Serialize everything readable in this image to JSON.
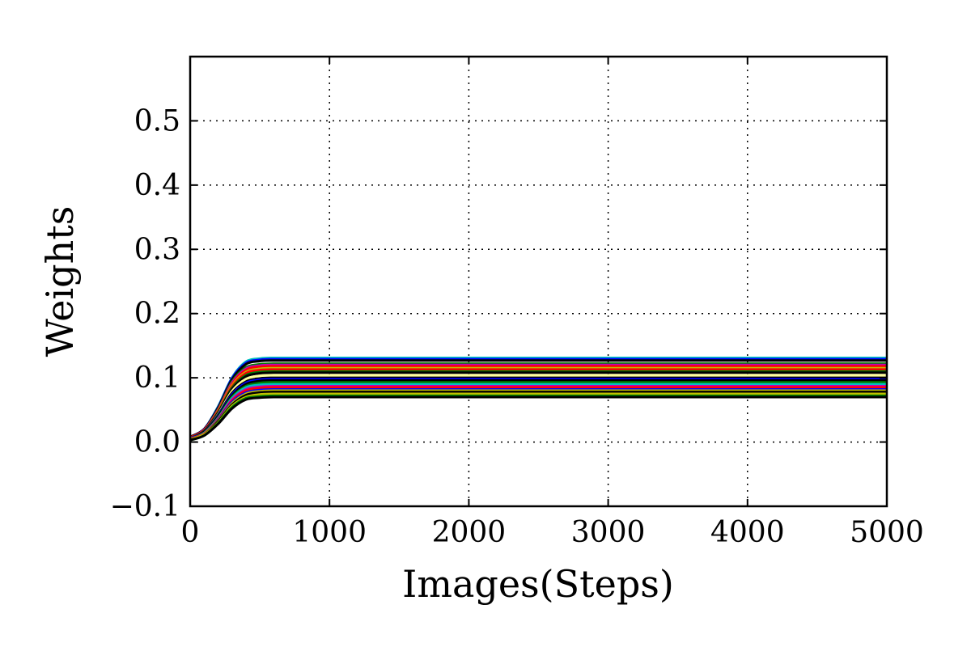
{
  "chart_data": {
    "type": "line",
    "title": "",
    "xlabel": "Images(Steps)",
    "ylabel": "Weights",
    "xlim": [
      0,
      5000
    ],
    "ylim": [
      -0.1,
      0.6
    ],
    "xticks": [
      0,
      1000,
      2000,
      3000,
      4000,
      5000
    ],
    "xtick_labels": [
      "0",
      "1000",
      "2000",
      "3000",
      "4000",
      "5000"
    ],
    "yticks": [
      -0.1,
      0.0,
      0.1,
      0.2,
      0.3,
      0.4,
      0.5
    ],
    "ytick_labels": [
      "−0.1",
      "0.0",
      "0.1",
      "0.2",
      "0.3",
      "0.4",
      "0.5"
    ],
    "grid": true,
    "legend": "none",
    "series_shape": "sigmoid rise from ~0.005 at x=0, plateau reached near x=500",
    "x": [
      0,
      100,
      200,
      300,
      400,
      500,
      600,
      1000,
      2000,
      3000,
      4000,
      5000
    ],
    "series": [
      {
        "color": "#00bfbf",
        "values": [
          0.008,
          0.02,
          0.055,
          0.1,
          0.125,
          0.13,
          0.131,
          0.131,
          0.131,
          0.131,
          0.131,
          0.131
        ]
      },
      {
        "color": "#0000ff",
        "values": [
          0.008,
          0.02,
          0.054,
          0.099,
          0.123,
          0.128,
          0.129,
          0.129,
          0.129,
          0.129,
          0.129,
          0.129
        ]
      },
      {
        "color": "#000000",
        "values": [
          0.008,
          0.02,
          0.053,
          0.097,
          0.121,
          0.126,
          0.127,
          0.127,
          0.127,
          0.127,
          0.127,
          0.127
        ]
      },
      {
        "color": "#007f00",
        "values": [
          0.007,
          0.019,
          0.051,
          0.094,
          0.116,
          0.121,
          0.122,
          0.122,
          0.122,
          0.122,
          0.122,
          0.122
        ]
      },
      {
        "color": "#bf00bf",
        "values": [
          0.007,
          0.019,
          0.05,
          0.092,
          0.114,
          0.119,
          0.12,
          0.12,
          0.12,
          0.12,
          0.12,
          0.12
        ]
      },
      {
        "color": "#ff0000",
        "values": [
          0.007,
          0.018,
          0.049,
          0.09,
          0.112,
          0.117,
          0.118,
          0.118,
          0.118,
          0.118,
          0.118,
          0.118
        ]
      },
      {
        "color": "#bfbf00",
        "values": [
          0.007,
          0.018,
          0.048,
          0.088,
          0.109,
          0.114,
          0.115,
          0.115,
          0.115,
          0.115,
          0.115,
          0.115
        ]
      },
      {
        "color": "#ff0000",
        "values": [
          0.007,
          0.018,
          0.047,
          0.086,
          0.107,
          0.112,
          0.113,
          0.113,
          0.113,
          0.113,
          0.113,
          0.113
        ]
      },
      {
        "color": "#007f00",
        "values": [
          0.006,
          0.017,
          0.046,
          0.084,
          0.104,
          0.109,
          0.11,
          0.11,
          0.11,
          0.11,
          0.11,
          0.11
        ]
      },
      {
        "color": "#000000",
        "values": [
          0.006,
          0.017,
          0.045,
          0.082,
          0.102,
          0.107,
          0.108,
          0.108,
          0.108,
          0.108,
          0.108,
          0.108
        ]
      },
      {
        "color": "#ffff99",
        "values": [
          0.006,
          0.016,
          0.043,
          0.079,
          0.098,
          0.103,
          0.104,
          0.104,
          0.104,
          0.104,
          0.104,
          0.104
        ]
      },
      {
        "color": "#000000",
        "values": [
          0.006,
          0.016,
          0.042,
          0.076,
          0.094,
          0.099,
          0.1,
          0.1,
          0.1,
          0.1,
          0.1,
          0.1
        ]
      },
      {
        "color": "#0000ff",
        "values": [
          0.006,
          0.015,
          0.041,
          0.074,
          0.092,
          0.097,
          0.098,
          0.098,
          0.098,
          0.098,
          0.098,
          0.098
        ]
      },
      {
        "color": "#000000",
        "values": [
          0.005,
          0.015,
          0.04,
          0.072,
          0.09,
          0.095,
          0.096,
          0.096,
          0.096,
          0.096,
          0.096,
          0.096
        ]
      },
      {
        "color": "#007f00",
        "values": [
          0.005,
          0.014,
          0.038,
          0.07,
          0.087,
          0.092,
          0.093,
          0.093,
          0.093,
          0.093,
          0.093,
          0.093
        ]
      },
      {
        "color": "#00bfbf",
        "values": [
          0.005,
          0.014,
          0.037,
          0.068,
          0.085,
          0.089,
          0.09,
          0.09,
          0.09,
          0.09,
          0.09,
          0.09
        ]
      },
      {
        "color": "#bf00bf",
        "values": [
          0.005,
          0.013,
          0.036,
          0.066,
          0.082,
          0.086,
          0.087,
          0.087,
          0.087,
          0.087,
          0.087,
          0.087
        ]
      },
      {
        "color": "#ff0000",
        "values": [
          0.005,
          0.013,
          0.035,
          0.064,
          0.08,
          0.084,
          0.085,
          0.085,
          0.085,
          0.085,
          0.085,
          0.085
        ]
      },
      {
        "color": "#0000ff",
        "values": [
          0.004,
          0.012,
          0.034,
          0.062,
          0.077,
          0.081,
          0.082,
          0.082,
          0.082,
          0.082,
          0.082,
          0.082
        ]
      },
      {
        "color": "#bfbf00",
        "values": [
          0.004,
          0.012,
          0.033,
          0.06,
          0.075,
          0.079,
          0.08,
          0.08,
          0.08,
          0.08,
          0.08,
          0.08
        ]
      },
      {
        "color": "#000000",
        "values": [
          0.004,
          0.011,
          0.032,
          0.058,
          0.073,
          0.077,
          0.078,
          0.078,
          0.078,
          0.078,
          0.078,
          0.078
        ]
      },
      {
        "color": "#bfbf00",
        "values": [
          0.004,
          0.011,
          0.03,
          0.056,
          0.07,
          0.074,
          0.075,
          0.075,
          0.075,
          0.075,
          0.075,
          0.075
        ]
      },
      {
        "color": "#007f00",
        "values": [
          0.003,
          0.01,
          0.029,
          0.054,
          0.068,
          0.071,
          0.072,
          0.072,
          0.072,
          0.072,
          0.072,
          0.072
        ]
      },
      {
        "color": "#000000",
        "values": [
          0.003,
          0.01,
          0.028,
          0.052,
          0.066,
          0.069,
          0.07,
          0.07,
          0.07,
          0.07,
          0.07,
          0.07
        ]
      }
    ]
  }
}
